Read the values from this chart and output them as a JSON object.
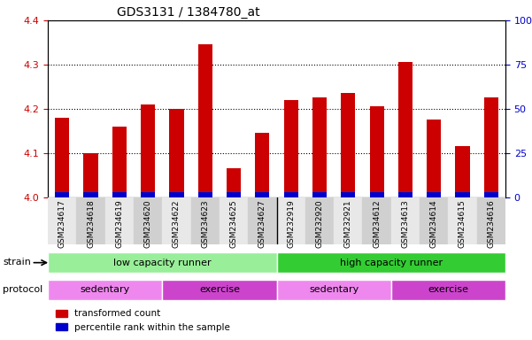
{
  "title": "GDS3131 / 1384780_at",
  "samples": [
    "GSM234617",
    "GSM234618",
    "GSM234619",
    "GSM234620",
    "GSM234622",
    "GSM234623",
    "GSM234625",
    "GSM234627",
    "GSM232919",
    "GSM232920",
    "GSM232921",
    "GSM234612",
    "GSM234613",
    "GSM234614",
    "GSM234615",
    "GSM234616"
  ],
  "transformed_count": [
    4.18,
    4.1,
    4.16,
    4.21,
    4.2,
    4.345,
    4.065,
    4.145,
    4.22,
    4.225,
    4.235,
    4.205,
    4.305,
    4.175,
    4.115,
    4.225
  ],
  "percentile_rank": [
    3,
    3,
    3,
    5,
    3,
    5,
    3,
    3,
    3,
    5,
    5,
    8,
    8,
    5,
    3,
    5
  ],
  "red_color": "#cc0000",
  "blue_color": "#0000cc",
  "ylim_left": [
    4.0,
    4.4
  ],
  "ylim_right": [
    0,
    100
  ],
  "yticks_left": [
    4.0,
    4.1,
    4.2,
    4.3,
    4.4
  ],
  "yticks_right": [
    0,
    25,
    50,
    75,
    100
  ],
  "strain_groups": [
    {
      "label": "low capacity runner",
      "start": 0,
      "end": 8,
      "color": "#99ee99"
    },
    {
      "label": "high capacity runner",
      "start": 8,
      "end": 16,
      "color": "#33cc33"
    }
  ],
  "protocol_groups": [
    {
      "label": "sedentary",
      "start": 0,
      "end": 4,
      "color": "#ee88ee"
    },
    {
      "label": "exercise",
      "start": 4,
      "end": 8,
      "color": "#cc44cc"
    },
    {
      "label": "sedentary",
      "start": 8,
      "end": 12,
      "color": "#ee88ee"
    },
    {
      "label": "exercise",
      "start": 12,
      "end": 16,
      "color": "#cc44cc"
    }
  ],
  "bar_width": 0.5,
  "background_plot": "#ffffff",
  "grid_color": "#000000",
  "left_tick_color": "#cc0000",
  "right_tick_color": "#0000cc"
}
